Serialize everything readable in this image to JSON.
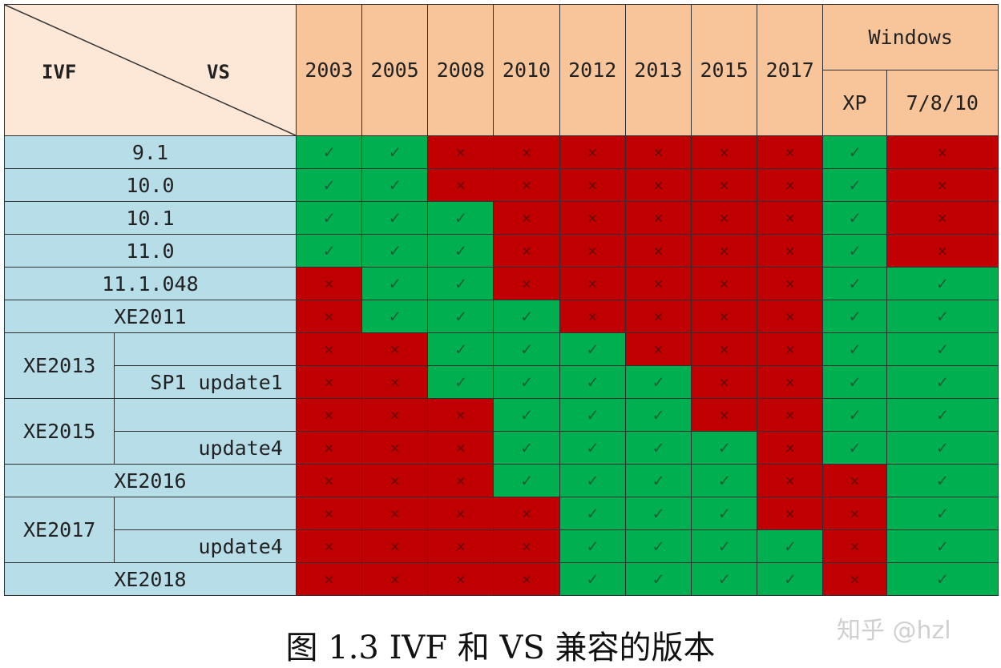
{
  "header": {
    "corner_left": "IVF",
    "corner_right": "VS",
    "years": [
      "2003",
      "2005",
      "2008",
      "2010",
      "2012",
      "2013",
      "2015",
      "2017"
    ],
    "windows_group": "Windows",
    "windows_cols": [
      "XP",
      "7/8/10"
    ]
  },
  "symbols": {
    "ok": "✓",
    "no": "×"
  },
  "colors": {
    "ok": "#00b050",
    "no": "#c00000",
    "header": "#f8c49a",
    "label": "#b7dde8"
  },
  "rows": [
    {
      "label": "9.1",
      "sub": null,
      "cells": [
        1,
        1,
        0,
        0,
        0,
        0,
        0,
        0,
        1,
        0
      ]
    },
    {
      "label": "10.0",
      "sub": null,
      "cells": [
        1,
        1,
        0,
        0,
        0,
        0,
        0,
        0,
        1,
        0
      ]
    },
    {
      "label": "10.1",
      "sub": null,
      "cells": [
        1,
        1,
        1,
        0,
        0,
        0,
        0,
        0,
        1,
        0
      ]
    },
    {
      "label": "11.0",
      "sub": null,
      "cells": [
        1,
        1,
        1,
        0,
        0,
        0,
        0,
        0,
        1,
        0
      ]
    },
    {
      "label": "11.1.048",
      "sub": null,
      "cells": [
        0,
        1,
        1,
        0,
        0,
        0,
        0,
        0,
        1,
        1
      ]
    },
    {
      "label": "XE2011",
      "sub": null,
      "cells": [
        0,
        1,
        1,
        1,
        0,
        0,
        0,
        0,
        1,
        1
      ]
    },
    {
      "label": "XE2013",
      "sub": "",
      "span": 2,
      "cells": [
        0,
        0,
        1,
        1,
        1,
        0,
        0,
        0,
        1,
        1
      ]
    },
    {
      "label": null,
      "sub": "SP1 update1",
      "cells": [
        0,
        0,
        1,
        1,
        1,
        1,
        0,
        0,
        1,
        1
      ]
    },
    {
      "label": "XE2015",
      "sub": "",
      "span": 2,
      "cells": [
        0,
        0,
        0,
        1,
        1,
        1,
        0,
        0,
        1,
        1
      ]
    },
    {
      "label": null,
      "sub": "update4",
      "cells": [
        0,
        0,
        0,
        1,
        1,
        1,
        1,
        0,
        1,
        1
      ]
    },
    {
      "label": "XE2016",
      "sub": null,
      "cells": [
        0,
        0,
        0,
        1,
        1,
        1,
        1,
        0,
        0,
        1
      ]
    },
    {
      "label": "XE2017",
      "sub": "",
      "span": 2,
      "cells": [
        0,
        0,
        0,
        0,
        1,
        1,
        1,
        0,
        0,
        1
      ]
    },
    {
      "label": null,
      "sub": "update4",
      "cells": [
        0,
        0,
        0,
        0,
        1,
        1,
        1,
        1,
        0,
        1
      ]
    },
    {
      "label": "XE2018",
      "sub": null,
      "cells": [
        0,
        0,
        0,
        0,
        1,
        1,
        1,
        1,
        0,
        1
      ]
    }
  ],
  "caption": "图 1.3 IVF 和 VS 兼容的版本",
  "watermark": "知乎 @hzl"
}
